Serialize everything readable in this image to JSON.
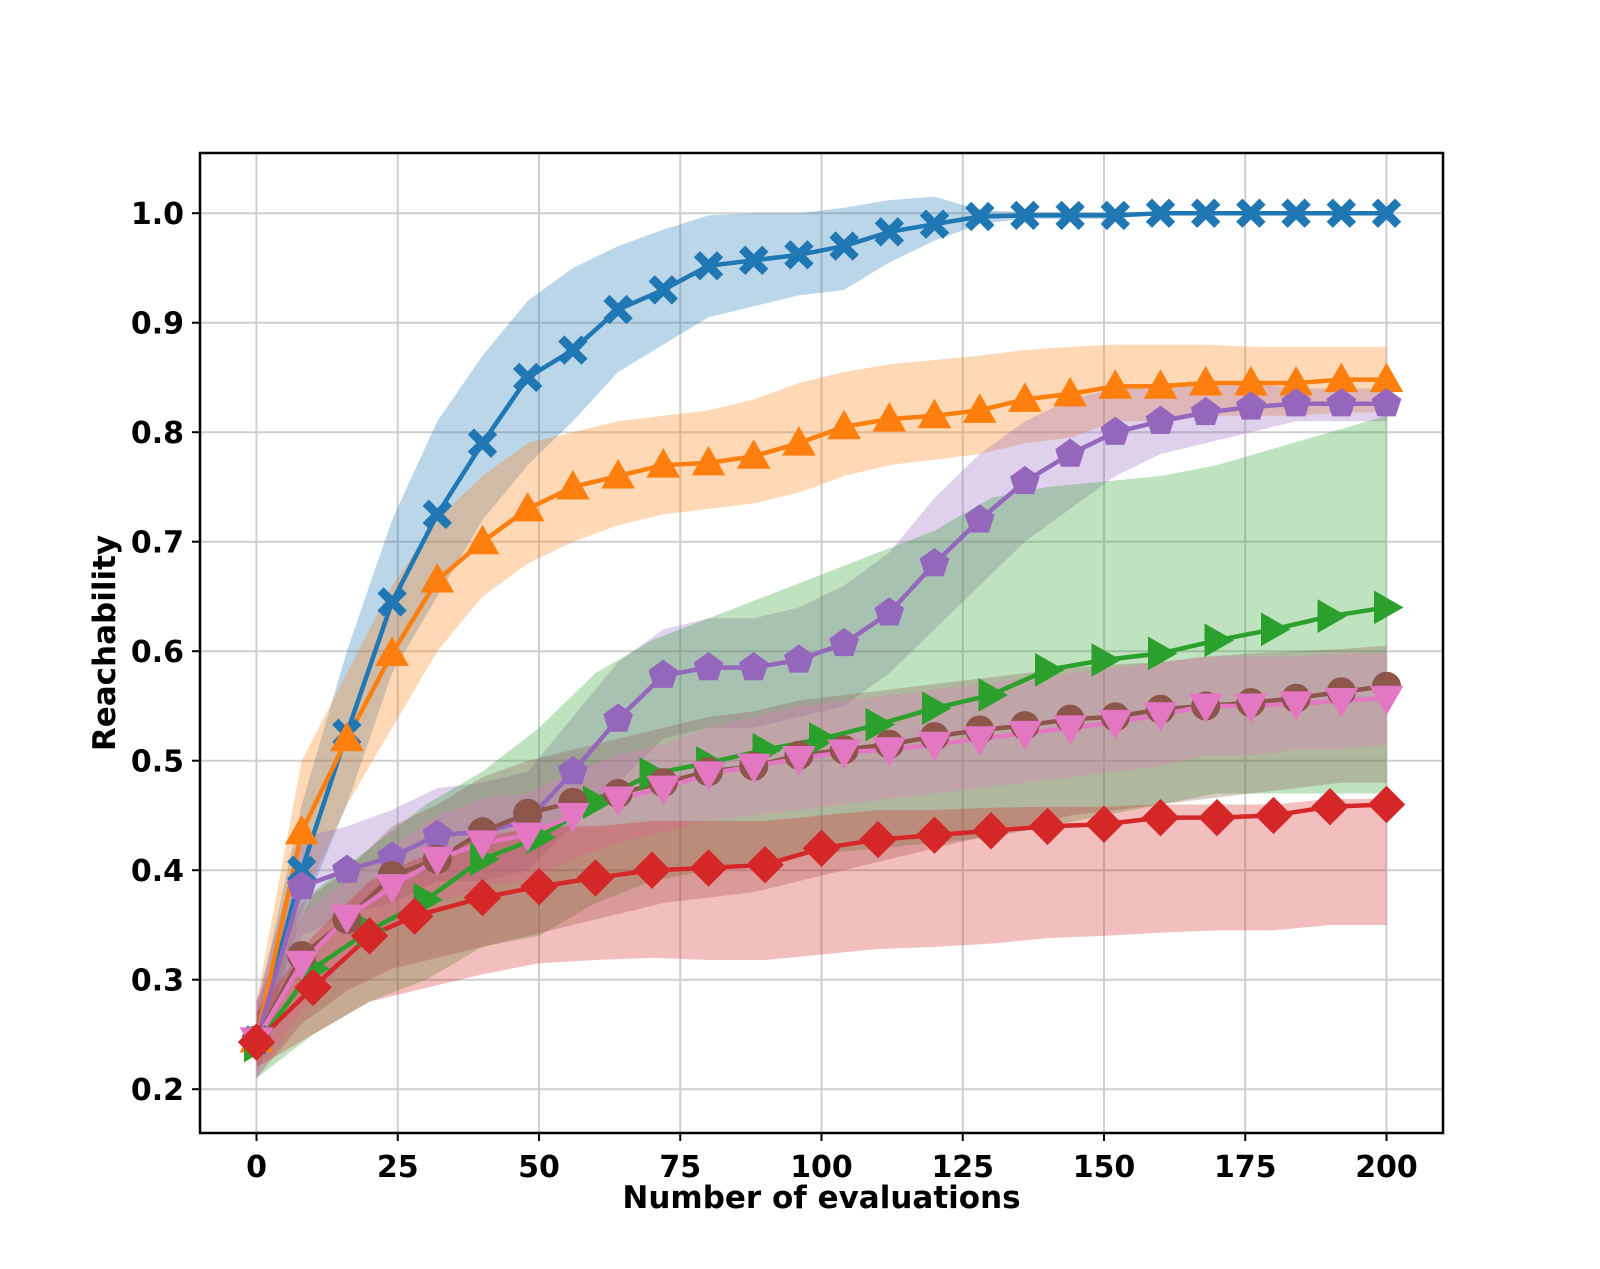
{
  "chart_data": {
    "type": "line",
    "title": "",
    "xlabel": "Number of evaluations",
    "ylabel": "Reachability",
    "xlim": [
      -10,
      210
    ],
    "ylim": [
      0.16,
      1.055
    ],
    "xticks": [
      0,
      25,
      50,
      75,
      100,
      125,
      150,
      175,
      200
    ],
    "xtick_labels": [
      "0",
      "25",
      "50",
      "75",
      "100",
      "125",
      "150",
      "175",
      "200"
    ],
    "yticks": [
      0.2,
      0.3,
      0.4,
      0.5,
      0.6,
      0.7,
      0.8,
      0.9,
      1.0
    ],
    "ytick_labels": [
      "0.2",
      "0.3",
      "0.4",
      "0.5",
      "0.6",
      "0.7",
      "0.8",
      "0.9",
      "1.0"
    ],
    "grid": true,
    "series": [
      {
        "name": "series-blue",
        "color": "#1f77b4",
        "marker": "X",
        "x": [
          0,
          8,
          16,
          24,
          32,
          40,
          48,
          56,
          64,
          72,
          80,
          88,
          96,
          104,
          112,
          120,
          128,
          136,
          144,
          152,
          160,
          168,
          176,
          184,
          192,
          200
        ],
        "values": [
          0.245,
          0.4,
          0.525,
          0.645,
          0.725,
          0.79,
          0.85,
          0.875,
          0.912,
          0.93,
          0.952,
          0.957,
          0.962,
          0.97,
          0.983,
          0.99,
          0.997,
          0.998,
          0.998,
          0.998,
          1.0,
          1.0,
          1.0,
          1.0,
          1.0,
          1.0
        ],
        "upper": [
          0.27,
          0.46,
          0.6,
          0.72,
          0.81,
          0.87,
          0.92,
          0.95,
          0.97,
          0.985,
          0.998,
          1.0,
          1.0,
          1.005,
          1.012,
          1.015,
          1.003,
          1.001,
          1.001,
          1.001,
          1.001,
          1.001,
          1.001,
          1.001,
          1.001,
          1.001
        ],
        "lower": [
          0.22,
          0.36,
          0.46,
          0.58,
          0.65,
          0.72,
          0.77,
          0.81,
          0.855,
          0.88,
          0.905,
          0.915,
          0.925,
          0.93,
          0.955,
          0.975,
          0.99,
          0.995,
          0.995,
          0.995,
          0.999,
          0.999,
          0.999,
          0.999,
          0.999,
          0.999
        ]
      },
      {
        "name": "series-orange",
        "color": "#ff7f0e",
        "marker": "^",
        "x": [
          0,
          8,
          16,
          24,
          32,
          40,
          48,
          56,
          64,
          72,
          80,
          88,
          96,
          104,
          112,
          120,
          128,
          136,
          144,
          152,
          160,
          168,
          176,
          184,
          192,
          200
        ],
        "values": [
          0.245,
          0.435,
          0.52,
          0.598,
          0.665,
          0.7,
          0.73,
          0.75,
          0.76,
          0.77,
          0.772,
          0.778,
          0.79,
          0.805,
          0.812,
          0.815,
          0.82,
          0.83,
          0.835,
          0.842,
          0.842,
          0.845,
          0.845,
          0.845,
          0.848,
          0.848
        ],
        "upper": [
          0.28,
          0.5,
          0.58,
          0.66,
          0.72,
          0.76,
          0.79,
          0.8,
          0.81,
          0.815,
          0.82,
          0.83,
          0.845,
          0.855,
          0.862,
          0.866,
          0.87,
          0.875,
          0.878,
          0.88,
          0.88,
          0.88,
          0.878,
          0.878,
          0.878,
          0.878
        ],
        "lower": [
          0.22,
          0.37,
          0.46,
          0.53,
          0.6,
          0.65,
          0.68,
          0.7,
          0.715,
          0.725,
          0.73,
          0.735,
          0.745,
          0.76,
          0.77,
          0.775,
          0.78,
          0.79,
          0.795,
          0.81,
          0.81,
          0.815,
          0.815,
          0.815,
          0.818,
          0.818
        ]
      },
      {
        "name": "series-purple",
        "color": "#9467bd",
        "marker": "p",
        "x": [
          0,
          8,
          16,
          24,
          32,
          40,
          48,
          56,
          64,
          72,
          80,
          88,
          96,
          104,
          112,
          120,
          128,
          136,
          144,
          152,
          160,
          168,
          176,
          184,
          192,
          200
        ],
        "values": [
          0.245,
          0.385,
          0.4,
          0.412,
          0.432,
          0.435,
          0.445,
          0.49,
          0.538,
          0.578,
          0.585,
          0.585,
          0.592,
          0.607,
          0.635,
          0.68,
          0.72,
          0.755,
          0.78,
          0.8,
          0.81,
          0.818,
          0.823,
          0.826,
          0.826,
          0.826
        ],
        "upper": [
          0.28,
          0.43,
          0.44,
          0.455,
          0.475,
          0.48,
          0.49,
          0.54,
          0.59,
          0.62,
          0.63,
          0.63,
          0.64,
          0.66,
          0.69,
          0.74,
          0.78,
          0.81,
          0.83,
          0.84,
          0.845,
          0.845,
          0.845,
          0.84,
          0.84,
          0.84
        ],
        "lower": [
          0.21,
          0.34,
          0.36,
          0.37,
          0.39,
          0.39,
          0.4,
          0.44,
          0.48,
          0.52,
          0.53,
          0.53,
          0.54,
          0.55,
          0.58,
          0.62,
          0.66,
          0.7,
          0.73,
          0.76,
          0.78,
          0.79,
          0.8,
          0.81,
          0.81,
          0.81
        ]
      },
      {
        "name": "series-green",
        "color": "#2ca02c",
        "marker": ">",
        "x": [
          0,
          10,
          20,
          30,
          40,
          50,
          60,
          70,
          80,
          90,
          100,
          110,
          120,
          130,
          140,
          150,
          160,
          170,
          180,
          190,
          200
        ],
        "values": [
          0.24,
          0.31,
          0.345,
          0.373,
          0.41,
          0.43,
          0.462,
          0.488,
          0.498,
          0.51,
          0.52,
          0.533,
          0.548,
          0.56,
          0.583,
          0.592,
          0.598,
          0.61,
          0.62,
          0.632,
          0.64
        ],
        "upper": [
          0.27,
          0.38,
          0.42,
          0.46,
          0.49,
          0.53,
          0.58,
          0.61,
          0.63,
          0.65,
          0.67,
          0.69,
          0.71,
          0.74,
          0.75,
          0.755,
          0.76,
          0.77,
          0.785,
          0.8,
          0.815
        ],
        "lower": [
          0.21,
          0.25,
          0.28,
          0.3,
          0.33,
          0.34,
          0.37,
          0.39,
          0.4,
          0.41,
          0.415,
          0.42,
          0.425,
          0.43,
          0.44,
          0.45,
          0.46,
          0.47,
          0.47,
          0.47,
          0.47
        ]
      },
      {
        "name": "series-brown",
        "color": "#8c564b",
        "marker": "o",
        "x": [
          0,
          8,
          16,
          24,
          32,
          40,
          48,
          56,
          64,
          72,
          80,
          88,
          96,
          104,
          112,
          120,
          128,
          136,
          144,
          152,
          160,
          168,
          176,
          184,
          192,
          200
        ],
        "values": [
          0.245,
          0.322,
          0.355,
          0.395,
          0.41,
          0.435,
          0.452,
          0.462,
          0.47,
          0.48,
          0.49,
          0.495,
          0.505,
          0.51,
          0.515,
          0.522,
          0.528,
          0.532,
          0.538,
          0.54,
          0.547,
          0.55,
          0.553,
          0.557,
          0.563,
          0.568
        ],
        "upper": [
          0.28,
          0.37,
          0.4,
          0.44,
          0.46,
          0.485,
          0.5,
          0.51,
          0.52,
          0.53,
          0.54,
          0.545,
          0.555,
          0.56,
          0.565,
          0.57,
          0.575,
          0.58,
          0.585,
          0.588,
          0.59,
          0.595,
          0.598,
          0.6,
          0.602,
          0.605
        ],
        "lower": [
          0.21,
          0.26,
          0.29,
          0.31,
          0.32,
          0.33,
          0.34,
          0.35,
          0.36,
          0.37,
          0.375,
          0.38,
          0.39,
          0.4,
          0.41,
          0.42,
          0.43,
          0.44,
          0.45,
          0.455,
          0.46,
          0.465,
          0.47,
          0.475,
          0.48,
          0.48
        ]
      },
      {
        "name": "series-pink",
        "color": "#e377c2",
        "marker": "v",
        "x": [
          0,
          8,
          16,
          24,
          32,
          40,
          48,
          56,
          64,
          72,
          80,
          88,
          96,
          104,
          112,
          120,
          128,
          136,
          144,
          152,
          160,
          168,
          176,
          184,
          192,
          200
        ],
        "values": [
          0.245,
          0.315,
          0.357,
          0.385,
          0.41,
          0.425,
          0.432,
          0.45,
          0.465,
          0.475,
          0.488,
          0.495,
          0.502,
          0.508,
          0.51,
          0.515,
          0.52,
          0.525,
          0.53,
          0.535,
          0.542,
          0.55,
          0.55,
          0.552,
          0.555,
          0.557
        ],
        "upper": [
          0.28,
          0.36,
          0.39,
          0.42,
          0.45,
          0.465,
          0.47,
          0.49,
          0.505,
          0.515,
          0.53,
          0.54,
          0.55,
          0.555,
          0.56,
          0.565,
          0.57,
          0.575,
          0.58,
          0.585,
          0.59,
          0.595,
          0.595,
          0.595,
          0.598,
          0.598
        ],
        "lower": [
          0.21,
          0.27,
          0.32,
          0.35,
          0.37,
          0.385,
          0.39,
          0.41,
          0.425,
          0.435,
          0.445,
          0.45,
          0.455,
          0.46,
          0.465,
          0.47,
          0.475,
          0.48,
          0.485,
          0.49,
          0.495,
          0.505,
          0.505,
          0.51,
          0.51,
          0.515
        ]
      },
      {
        "name": "series-red",
        "color": "#d62728",
        "marker": "D",
        "x": [
          0,
          10,
          20,
          28,
          40,
          50,
          60,
          70,
          80,
          90,
          100,
          110,
          120,
          130,
          140,
          150,
          160,
          170,
          180,
          190,
          200
        ],
        "values": [
          0.243,
          0.293,
          0.34,
          0.358,
          0.375,
          0.385,
          0.393,
          0.4,
          0.402,
          0.405,
          0.42,
          0.428,
          0.432,
          0.436,
          0.44,
          0.442,
          0.448,
          0.448,
          0.45,
          0.458,
          0.46
        ],
        "upper": [
          0.27,
          0.34,
          0.39,
          0.41,
          0.43,
          0.44,
          0.44,
          0.445,
          0.445,
          0.445,
          0.45,
          0.455,
          0.455,
          0.457,
          0.458,
          0.458,
          0.46,
          0.46,
          0.46,
          0.465,
          0.465
        ],
        "lower": [
          0.22,
          0.25,
          0.28,
          0.29,
          0.305,
          0.315,
          0.318,
          0.32,
          0.318,
          0.318,
          0.323,
          0.328,
          0.33,
          0.333,
          0.338,
          0.34,
          0.343,
          0.345,
          0.345,
          0.35,
          0.35
        ]
      }
    ]
  }
}
